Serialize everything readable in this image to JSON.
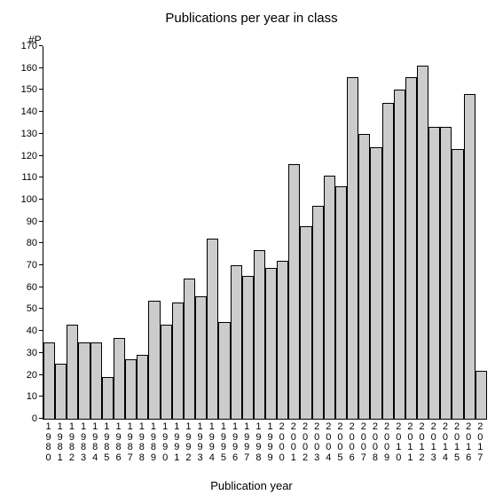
{
  "chart": {
    "type": "bar",
    "title": "Publications per year in class",
    "title_fontsize": 15,
    "y_unit_label": "#P",
    "x_axis_label": "Publication year",
    "label_fontsize": 13,
    "tick_fontsize": 11,
    "background_color": "#ffffff",
    "bar_fill": "#cccccc",
    "bar_border": "#000000",
    "axis_color": "#000000",
    "ylim": [
      0,
      170
    ],
    "ytick_step": 10,
    "categories": [
      "1980",
      "1981",
      "1982",
      "1983",
      "1984",
      "1985",
      "1986",
      "1987",
      "1988",
      "1989",
      "1990",
      "1991",
      "1992",
      "1993",
      "1994",
      "1995",
      "1996",
      "1997",
      "1998",
      "1999",
      "2000",
      "2001",
      "2002",
      "2003",
      "2004",
      "2005",
      "2006",
      "2007",
      "2008",
      "2009",
      "2010",
      "2011",
      "2012",
      "2013",
      "2014",
      "2015",
      "2016",
      "2017"
    ],
    "values": [
      35,
      25,
      43,
      35,
      35,
      19,
      37,
      27,
      29,
      54,
      43,
      53,
      64,
      56,
      82,
      44,
      70,
      65,
      77,
      69,
      72,
      116,
      88,
      97,
      111,
      106,
      156,
      130,
      124,
      144,
      150,
      156,
      161,
      133,
      133,
      123,
      148,
      22
    ]
  }
}
